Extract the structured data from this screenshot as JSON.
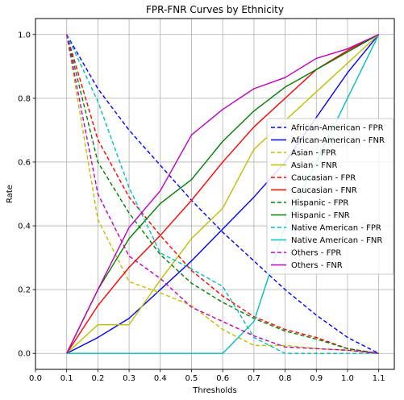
{
  "chart_data": {
    "type": "line",
    "title": "FPR-FNR Curves by Ethnicity",
    "xlabel": "Thresholds",
    "ylabel": "Rate",
    "xlim": [
      0.0,
      1.15
    ],
    "ylim": [
      -0.05,
      1.05
    ],
    "xticks": [
      0.0,
      0.1,
      0.2,
      0.3,
      0.4,
      0.5,
      0.6,
      0.7,
      0.8,
      0.9,
      1.0,
      1.1
    ],
    "xtick_labels": [
      "0.0",
      "0.1",
      "0.2",
      "0.3",
      "0.4",
      "0.5",
      "0.6",
      "0.7",
      "0.8",
      "0.9",
      "1.0",
      "1.1"
    ],
    "yticks": [
      0.0,
      0.2,
      0.4,
      0.6,
      0.8,
      1.0
    ],
    "ytick_labels": [
      "0.0",
      "0.2",
      "0.4",
      "0.6",
      "0.8",
      "1.0"
    ],
    "grid": true,
    "legend_position": "center-right",
    "x": [
      0.1,
      0.2,
      0.3,
      0.4,
      0.5,
      0.6,
      0.7,
      0.8,
      0.9,
      1.0,
      1.1
    ],
    "series": [
      {
        "name": "African-American - FPR",
        "color": "#0000ff",
        "dash": "dashed",
        "values": [
          1.0,
          0.83,
          0.7,
          0.59,
          0.48,
          0.38,
          0.29,
          0.2,
          0.12,
          0.05,
          0.0
        ]
      },
      {
        "name": "African-American - FNR",
        "color": "#0000ff",
        "dash": "solid",
        "values": [
          0.0,
          0.05,
          0.11,
          0.2,
          0.29,
          0.39,
          0.49,
          0.6,
          0.74,
          0.88,
          1.0
        ]
      },
      {
        "name": "Asian - FPR",
        "color": "#bfbf00",
        "dash": "dashed",
        "values": [
          1.0,
          0.42,
          0.225,
          0.19,
          0.15,
          0.075,
          0.025,
          0.025,
          0.015,
          0.01,
          0.0
        ]
      },
      {
        "name": "Asian - FNR",
        "color": "#bfbf00",
        "dash": "solid",
        "values": [
          0.0,
          0.09,
          0.09,
          0.23,
          0.36,
          0.455,
          0.64,
          0.73,
          0.82,
          0.91,
          1.0
        ]
      },
      {
        "name": "Caucasian - FPR",
        "color": "#ff0000",
        "dash": "dashed",
        "values": [
          1.0,
          0.67,
          0.49,
          0.37,
          0.26,
          0.18,
          0.115,
          0.075,
          0.05,
          0.015,
          0.0
        ]
      },
      {
        "name": "Caucasian - FNR",
        "color": "#ff0000",
        "dash": "solid",
        "values": [
          0.0,
          0.15,
          0.27,
          0.37,
          0.48,
          0.6,
          0.71,
          0.8,
          0.89,
          0.95,
          1.0
        ]
      },
      {
        "name": "Hispanic - FPR",
        "color": "#008000",
        "dash": "dashed",
        "values": [
          1.0,
          0.6,
          0.44,
          0.31,
          0.22,
          0.16,
          0.11,
          0.07,
          0.045,
          0.015,
          0.0
        ]
      },
      {
        "name": "Hispanic - FNR",
        "color": "#008000",
        "dash": "solid",
        "values": [
          0.0,
          0.2,
          0.36,
          0.47,
          0.545,
          0.665,
          0.76,
          0.835,
          0.89,
          0.945,
          1.0
        ]
      },
      {
        "name": "Native American - FPR",
        "color": "#00bfbf",
        "dash": "dashed",
        "values": [
          1.0,
          0.79,
          0.52,
          0.315,
          0.265,
          0.21,
          0.05,
          0.0,
          0.0,
          0.0,
          0.0
        ]
      },
      {
        "name": "Native American - FNR",
        "color": "#00bfbf",
        "dash": "solid",
        "values": [
          0.0,
          0.0,
          0.0,
          0.0,
          0.0,
          0.0,
          0.1,
          0.4,
          0.6,
          0.8,
          1.0
        ]
      },
      {
        "name": "Others - FPR",
        "color": "#bf00bf",
        "dash": "dashed",
        "values": [
          1.0,
          0.5,
          0.305,
          0.235,
          0.145,
          0.1,
          0.055,
          0.02,
          0.015,
          0.01,
          0.0
        ]
      },
      {
        "name": "Others - FNR",
        "color": "#bf00bf",
        "dash": "solid",
        "values": [
          0.0,
          0.2,
          0.395,
          0.51,
          0.685,
          0.765,
          0.83,
          0.865,
          0.925,
          0.955,
          1.0
        ]
      }
    ]
  }
}
